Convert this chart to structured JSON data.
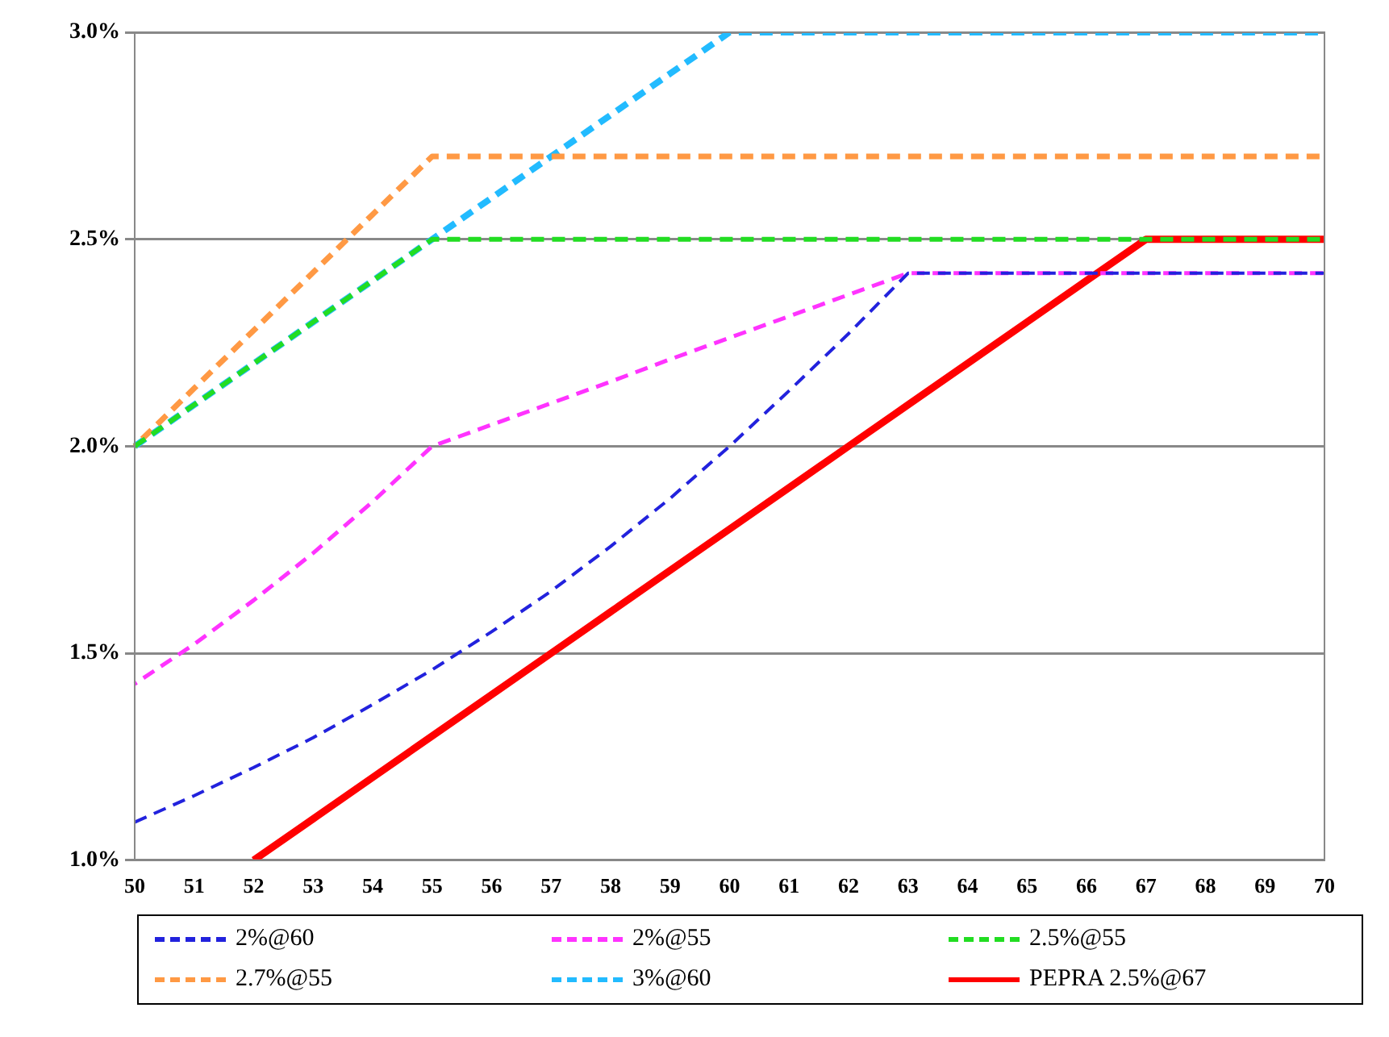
{
  "chart_data": {
    "type": "line",
    "categories": [
      "50",
      "51",
      "52",
      "53",
      "54",
      "55",
      "56",
      "57",
      "58",
      "59",
      "60",
      "61",
      "62",
      "63",
      "64",
      "65",
      "66",
      "67",
      "68",
      "69",
      "70"
    ],
    "ylim": [
      1.0,
      3.0
    ],
    "yticks": [
      {
        "value": 1.0,
        "label": "1.0%"
      },
      {
        "value": 1.5,
        "label": "1.5%"
      },
      {
        "value": 2.0,
        "label": "2.0%"
      },
      {
        "value": 2.5,
        "label": "2.5%"
      },
      {
        "value": 3.0,
        "label": "3.0%"
      }
    ],
    "grid": "y",
    "legend": "bottom",
    "marker": "none",
    "series": [
      {
        "name": "2%@60",
        "color": "#2222dd",
        "line_style": "dashed",
        "values": [
          1.092,
          1.156,
          1.224,
          1.296,
          1.376,
          1.46,
          1.552,
          1.65,
          1.758,
          1.874,
          2.0,
          2.134,
          2.272,
          2.418,
          2.418,
          2.418,
          2.418,
          2.418,
          2.418,
          2.418,
          2.418
        ]
      },
      {
        "name": "2%@55",
        "color": "#ff33ff",
        "line_style": "dashed",
        "values": [
          1.426,
          1.522,
          1.628,
          1.742,
          1.866,
          2.0,
          2.052,
          2.104,
          2.156,
          2.21,
          2.262,
          2.314,
          2.366,
          2.418,
          2.418,
          2.418,
          2.418,
          2.418,
          2.418,
          2.418,
          2.418
        ]
      },
      {
        "name": "2.5%@55",
        "color": "#22dd22",
        "line_style": "dashed",
        "values": [
          2.0,
          2.1,
          2.2,
          2.3,
          2.4,
          2.5,
          2.5,
          2.5,
          2.5,
          2.5,
          2.5,
          2.5,
          2.5,
          2.5,
          2.5,
          2.5,
          2.5,
          2.5,
          2.5,
          2.5,
          2.5
        ]
      },
      {
        "name": "2.7%@55",
        "color": "#ff9944",
        "line_style": "dashed",
        "values": [
          2.0,
          2.14,
          2.28,
          2.42,
          2.56,
          2.7,
          2.7,
          2.7,
          2.7,
          2.7,
          2.7,
          2.7,
          2.7,
          2.7,
          2.7,
          2.7,
          2.7,
          2.7,
          2.7,
          2.7,
          2.7
        ]
      },
      {
        "name": "3%@60",
        "color": "#22bbff",
        "line_style": "dashed",
        "values": [
          2.0,
          2.1,
          2.2,
          2.3,
          2.4,
          2.5,
          2.6,
          2.7,
          2.8,
          2.9,
          3.0,
          3.0,
          3.0,
          3.0,
          3.0,
          3.0,
          3.0,
          3.0,
          3.0,
          3.0,
          3.0
        ]
      },
      {
        "name": "PEPRA 2.5%@67",
        "color": "#ff0000",
        "line_style": "solid",
        "values": [
          null,
          null,
          1.0,
          1.1,
          1.2,
          1.3,
          1.4,
          1.5,
          1.6,
          1.7,
          1.8,
          1.9,
          2.0,
          2.1,
          2.2,
          2.3,
          2.4,
          2.5,
          2.5,
          2.5,
          2.5
        ]
      }
    ]
  }
}
